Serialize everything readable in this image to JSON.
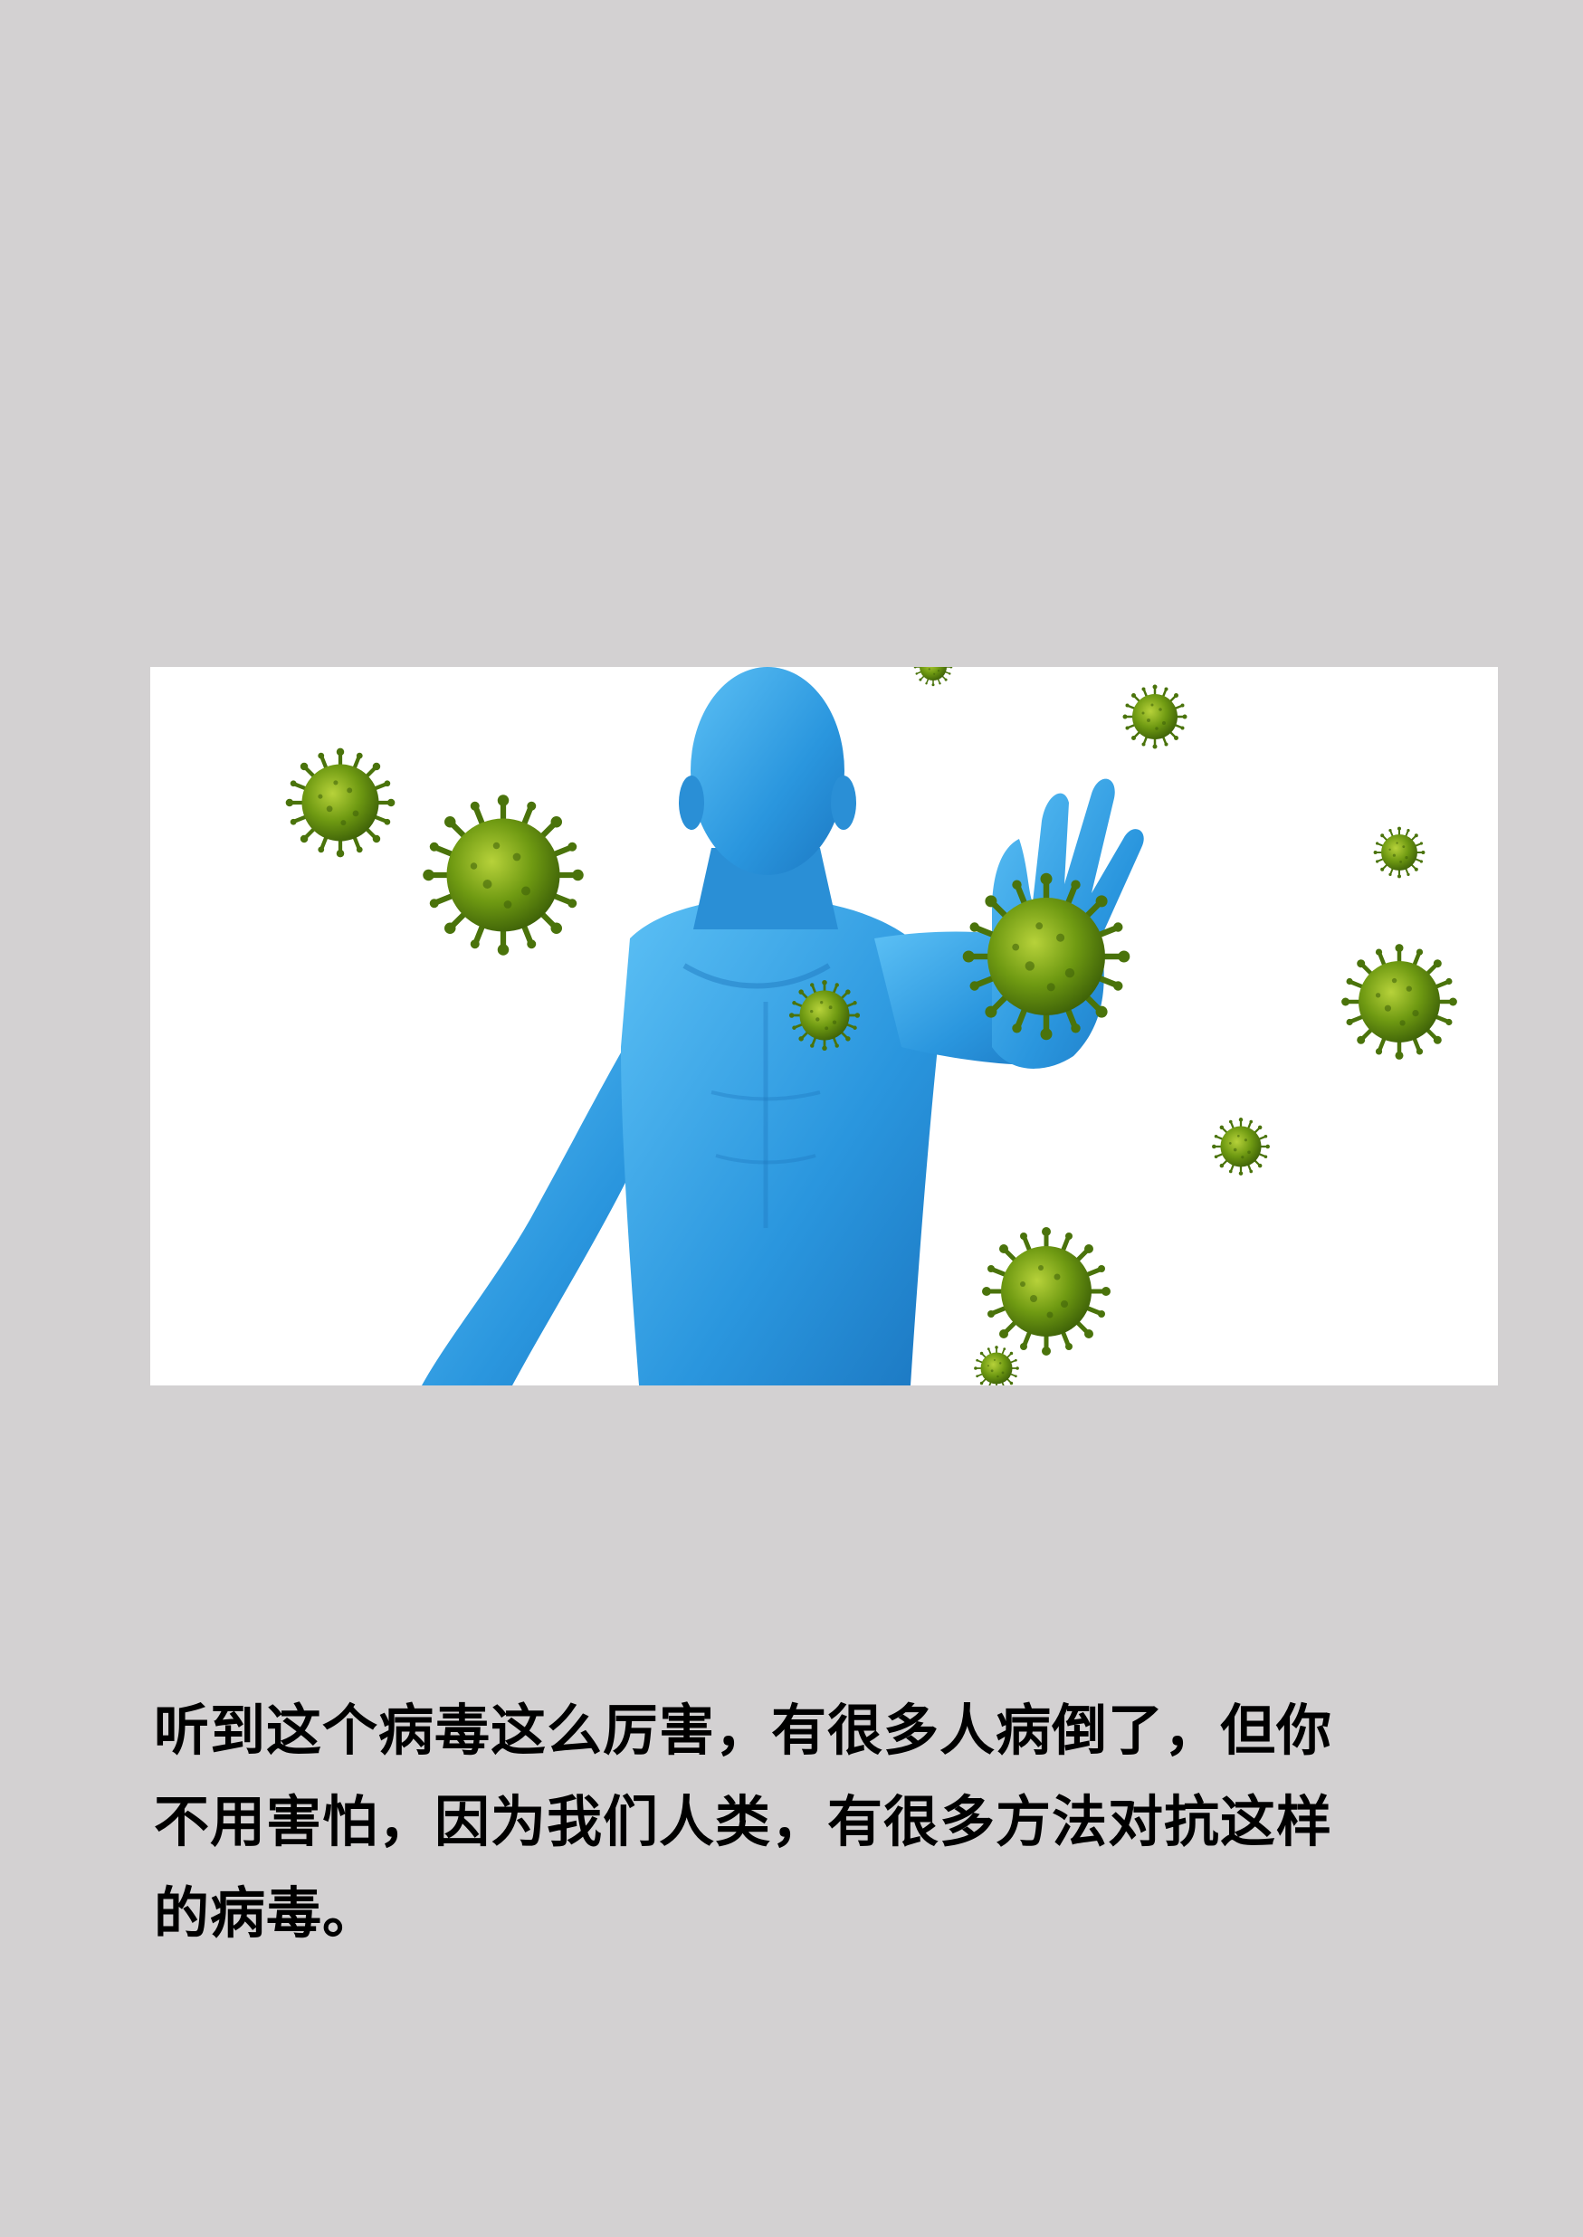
{
  "page": {
    "background": "#d3d1d2"
  },
  "illustration": {
    "figure_color": "#2e9be0",
    "virus_color": "#5b8c12",
    "virus_spike_color": "#3f6a0c",
    "background": "#ffffff"
  },
  "text": {
    "lines": [
      "听到这个病毒这么厉害，有很多人病倒了，但你",
      "不用害怕，因为我们人类，有很多方法对抗这样",
      "的病毒。"
    ]
  }
}
